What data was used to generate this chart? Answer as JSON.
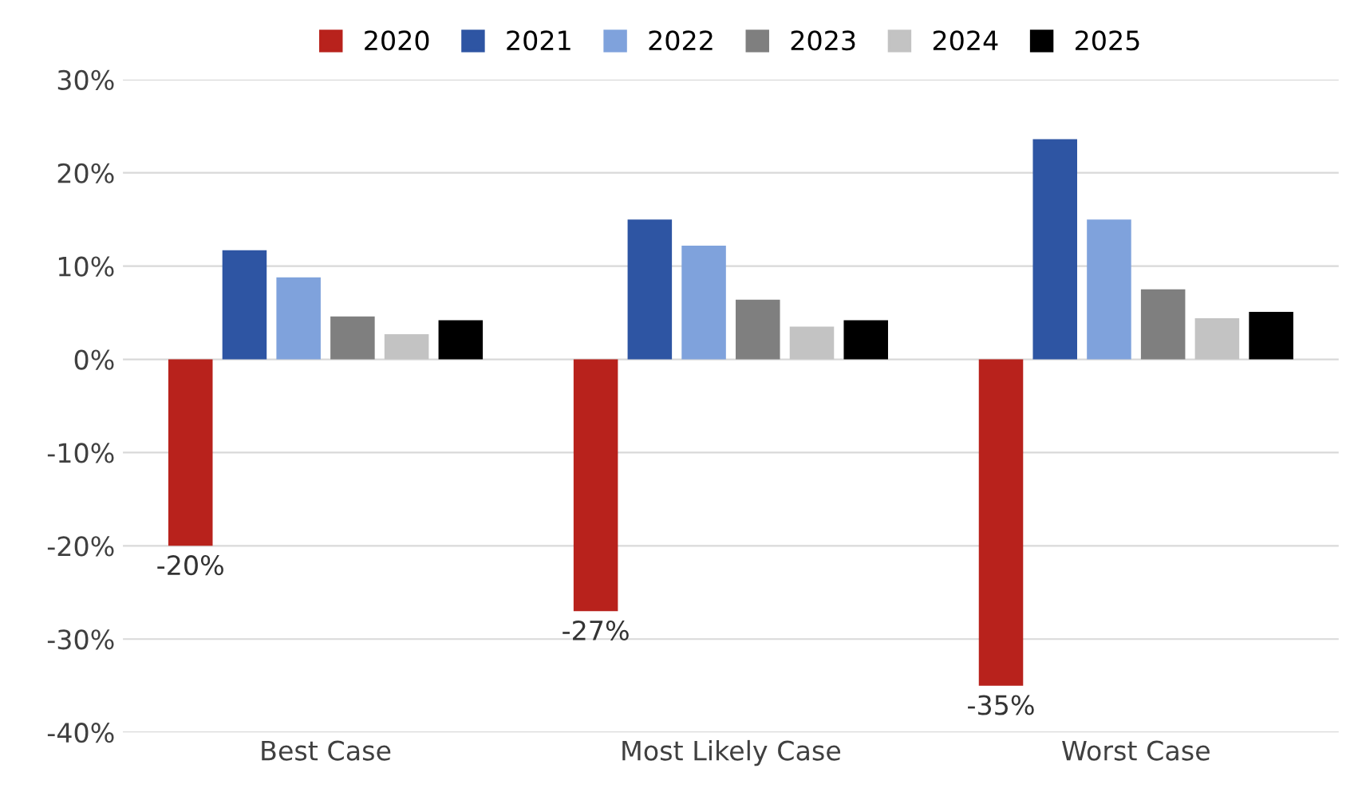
{
  "chart_data": {
    "type": "bar",
    "categories": [
      "Best Case",
      "Most Likely Case",
      "Worst Case"
    ],
    "series": [
      {
        "name": "2020",
        "color": "#b8221c",
        "values": [
          -20,
          -27,
          -35
        ],
        "value_labels": [
          "-20%",
          "-27%",
          "-35%"
        ]
      },
      {
        "name": "2021",
        "color": "#2e55a3",
        "values": [
          11.7,
          15,
          23.6
        ]
      },
      {
        "name": "2022",
        "color": "#7fa2dc",
        "values": [
          8.8,
          12.2,
          15
        ]
      },
      {
        "name": "2023",
        "color": "#7f7f7f",
        "values": [
          4.6,
          6.4,
          7.5
        ]
      },
      {
        "name": "2024",
        "color": "#c3c3c3",
        "values": [
          2.7,
          3.5,
          4.4
        ]
      },
      {
        "name": "2025",
        "color": "#000000",
        "values": [
          4.2,
          4.2,
          5.1
        ]
      }
    ],
    "ylim": [
      -40,
      30
    ],
    "yticks": [
      {
        "value": -40,
        "label": "-40%"
      },
      {
        "value": -30,
        "label": "-30%"
      },
      {
        "value": -20,
        "label": "-20%"
      },
      {
        "value": -10,
        "label": "-10%"
      },
      {
        "value": 0,
        "label": "0%"
      },
      {
        "value": 10,
        "label": "10%"
      },
      {
        "value": 20,
        "label": "20%"
      },
      {
        "value": 30,
        "label": "30%"
      }
    ],
    "grid": "y",
    "legend": "top"
  }
}
